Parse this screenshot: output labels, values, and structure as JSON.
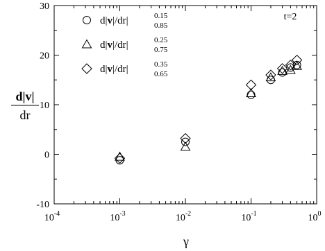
{
  "chart_data": {
    "type": "scatter",
    "xscale": "log",
    "xlim": [
      0.0001,
      1
    ],
    "ylim": [
      -10,
      30
    ],
    "xlabel": "γ",
    "ylabel_num": "d|v|",
    "ylabel_den": "dr",
    "annotation": "t=2",
    "legend_position": "top-left",
    "x_ticks": [
      {
        "value": 0.0001,
        "base": "10",
        "exp": "-4"
      },
      {
        "value": 0.001,
        "base": "10",
        "exp": "-3"
      },
      {
        "value": 0.01,
        "base": "10",
        "exp": "-2"
      },
      {
        "value": 0.1,
        "base": "10",
        "exp": "-1"
      },
      {
        "value": 1,
        "base": "10",
        "exp": "0"
      }
    ],
    "y_ticks": [
      {
        "value": -10,
        "label": "-10"
      },
      {
        "value": 0,
        "label": "0"
      },
      {
        "value": 10,
        "label": "10"
      },
      {
        "value": 20,
        "label": "20"
      },
      {
        "value": 30,
        "label": "30"
      }
    ],
    "series": [
      {
        "marker": "circle",
        "legend": {
          "prefix": "d|",
          "bold": "v",
          "mid": "|/dr|",
          "sup": "0.15",
          "sub": "0.85"
        },
        "x": [
          0.001,
          0.01,
          0.1,
          0.2,
          0.3,
          0.4,
          0.5
        ],
        "y": [
          -1.2,
          2.5,
          12.0,
          15.0,
          16.5,
          17.5,
          18.0
        ]
      },
      {
        "marker": "triangle",
        "legend": {
          "prefix": "d|",
          "bold": "v",
          "mid": "|/dr|",
          "sup": "0.25",
          "sub": "0.75"
        },
        "x": [
          0.001,
          0.01,
          0.1,
          0.2,
          0.3,
          0.4,
          0.5
        ],
        "y": [
          -0.5,
          1.5,
          12.3,
          15.5,
          16.8,
          17.0,
          17.8
        ]
      },
      {
        "marker": "diamond",
        "legend": {
          "prefix": "d|",
          "bold": "v",
          "mid": "|/dr|",
          "sup": "0.35",
          "sub": "0.65"
        },
        "x": [
          0.001,
          0.01,
          0.1,
          0.2,
          0.3,
          0.4,
          0.5
        ],
        "y": [
          -0.8,
          3.2,
          14.0,
          16.0,
          17.3,
          18.0,
          19.0
        ]
      }
    ]
  }
}
